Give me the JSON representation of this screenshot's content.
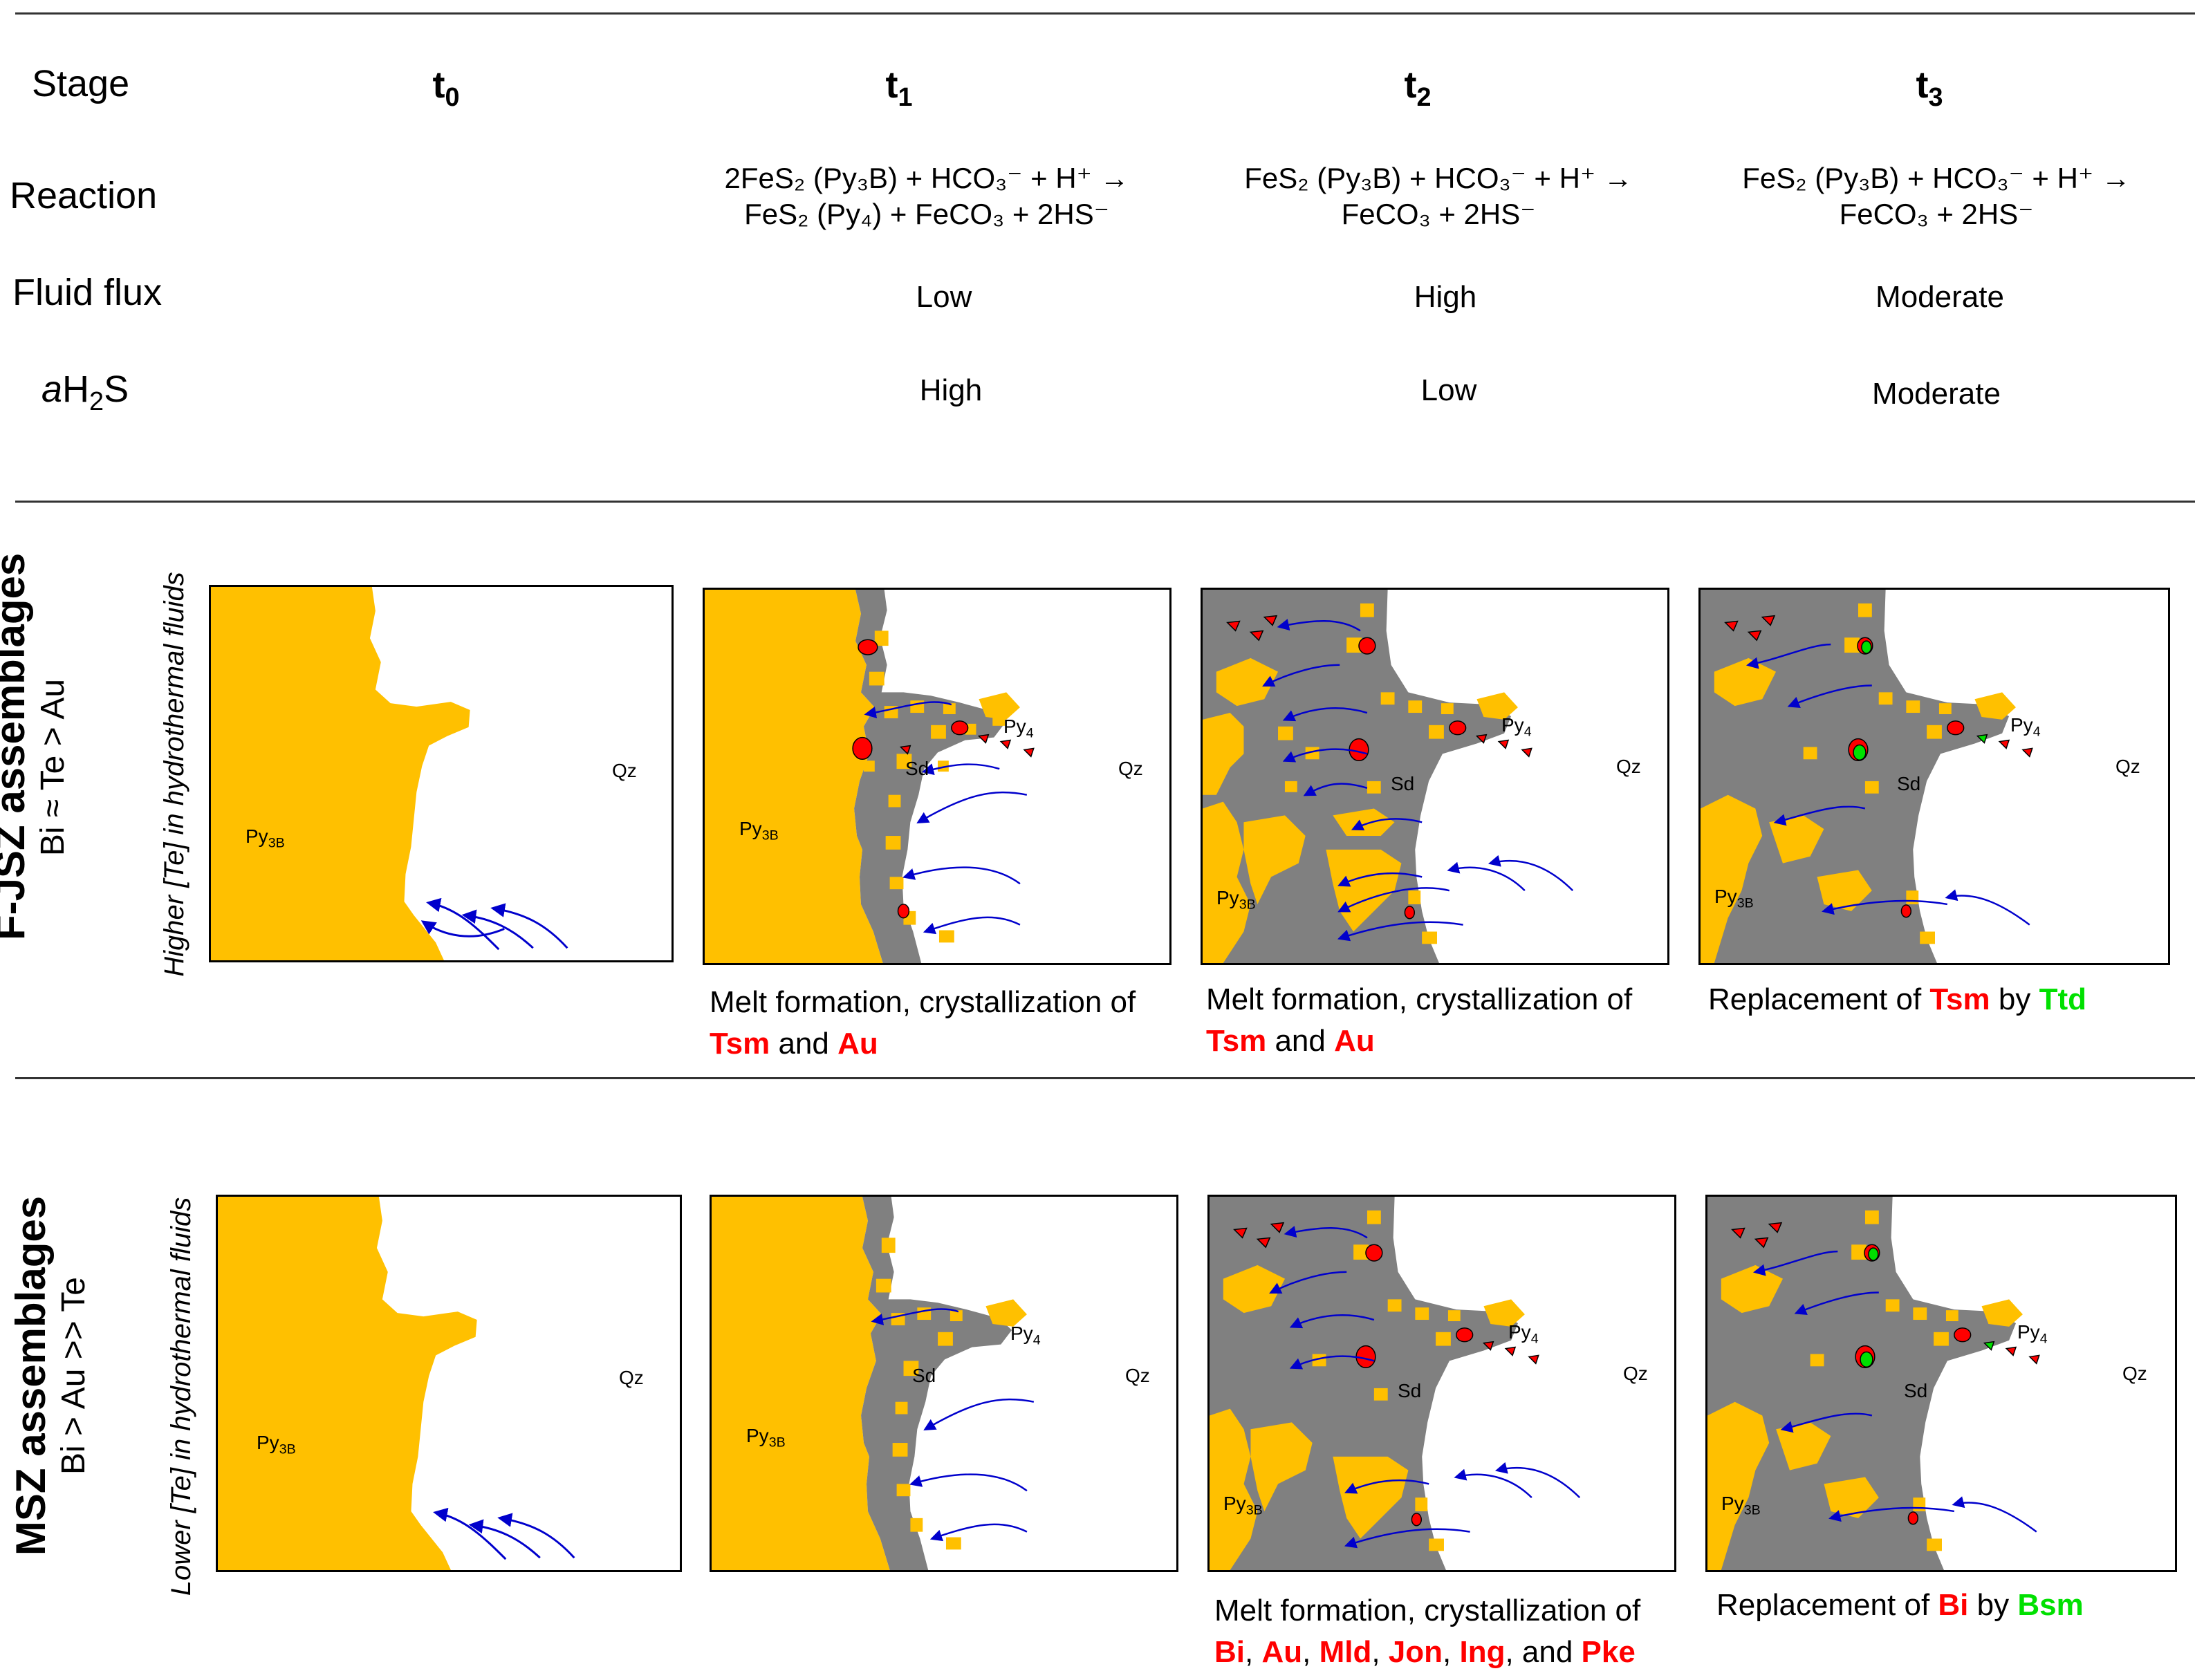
{
  "header": {
    "row_labels": {
      "stage": "Stage",
      "reaction": "Reaction",
      "fluid_flux": "Fluid flux",
      "ah2s_prefix": "a",
      "ah2s_main": "H",
      "ah2s_sub": "2",
      "ah2s_tail": "S"
    },
    "stages": [
      {
        "t": "t",
        "sub": "0"
      },
      {
        "t": "t",
        "sub": "1"
      },
      {
        "t": "t",
        "sub": "2"
      },
      {
        "t": "t",
        "sub": "3"
      }
    ],
    "reactions": [
      {
        "line1": "2FeS₂ (Py₃B) + HCO₃⁻ + H⁺ →",
        "line2": "FeS₂ (Py₄) + FeCO₃ + 2HS⁻"
      },
      {
        "line1": "FeS₂ (Py₃B) + HCO₃⁻ + H⁺ →",
        "line2": "FeCO₃ + 2HS⁻"
      },
      {
        "line1": "FeS₂ (Py₃B) + HCO₃⁻ + H⁺ →",
        "line2": "FeCO₃ + 2HS⁻"
      }
    ],
    "fluid_flux": [
      "Low",
      "High",
      "Moderate"
    ],
    "ah2s": [
      "High",
      "Low",
      "Moderate"
    ]
  },
  "rows": [
    {
      "title": "F-JSZ assemblages",
      "subtitle": "Bi ≈ Te > Au",
      "fluid_note": "Higher [Te] in hydrothermal fluids",
      "captions": [
        {
          "pre": "Melt formation, crystallization of",
          "items": [
            "Tsm",
            "Au"
          ],
          "sep": " and "
        },
        {
          "pre": "Melt formation, crystallization of",
          "items": [
            "Tsm",
            "Au"
          ],
          "sep": " and "
        },
        {
          "pre": "Replacement of",
          "red": "Tsm",
          "mid": "by",
          "green": "Ttd"
        }
      ]
    },
    {
      "title": "MSZ assemblages",
      "subtitle": "Bi > Au >> Te",
      "fluid_note": "Lower  [Te] in hydrothermal fluids",
      "captions": [
        {
          "pre": "Melt formation, crystallization of",
          "items": [
            "Bi",
            "Au",
            "Mld",
            "Jon",
            "Ing",
            "Pke"
          ]
        },
        {
          "pre": "Replacement of",
          "red": "Bi",
          "mid": "by",
          "green": "Bsm"
        }
      ]
    }
  ],
  "mineral_labels": {
    "py3b": "Py",
    "py3b_sub": "3B",
    "py4": "Py",
    "py4_sub": "4",
    "sd": "Sd",
    "qz": "Qz"
  },
  "colors": {
    "pyrite": "#ffc000",
    "siderite": "#808080",
    "melt": "#ff0000",
    "replacement": "#00e000",
    "fluid_arrow": "#0000cc"
  }
}
